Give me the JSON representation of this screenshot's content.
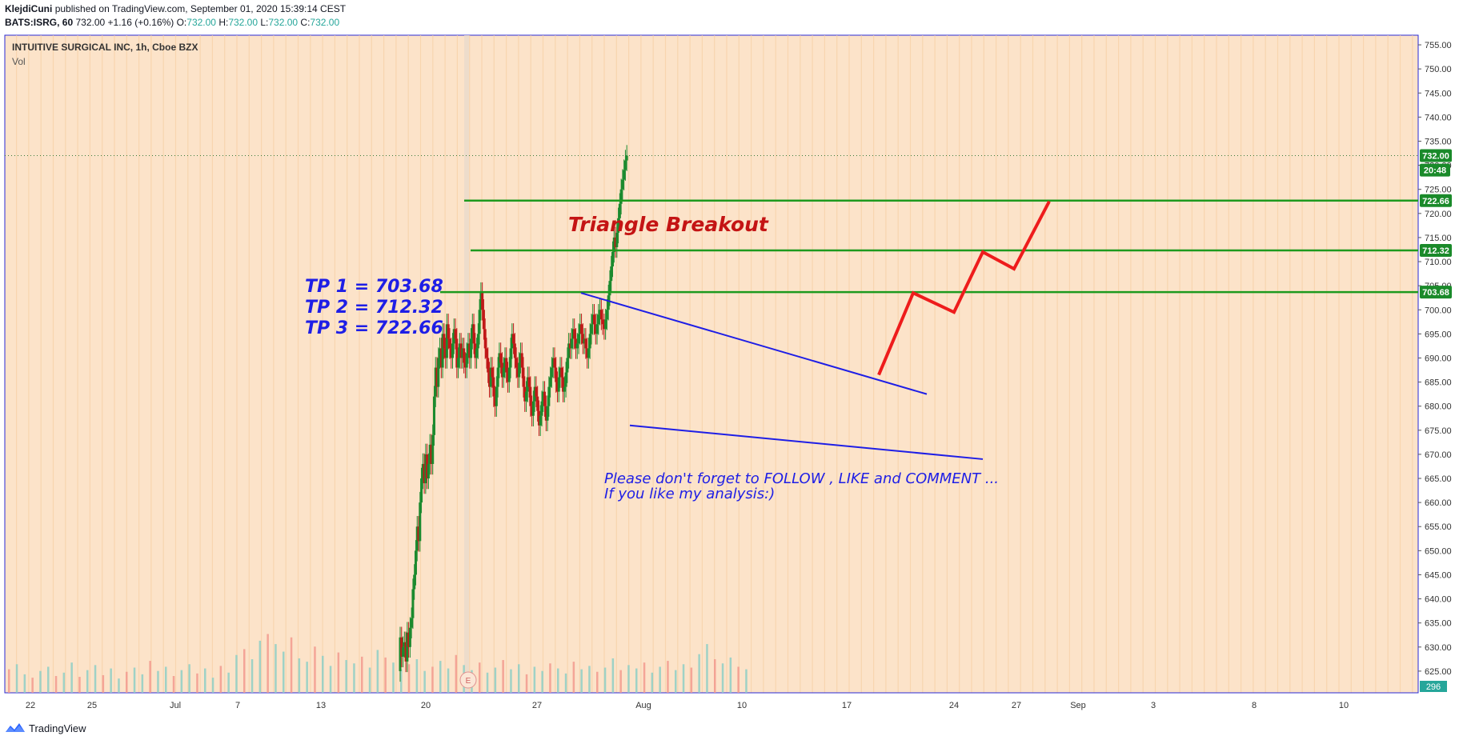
{
  "header": {
    "author": "KlejdiCuni",
    "published": "published on TradingView.com, September 01, 2020 15:39:14 CEST",
    "symbol": "BATS:ISRG, 60",
    "last": "732.00",
    "change": "+1.16 (+0.16%)",
    "o_label": "O:",
    "o": "732.00",
    "h_label": "H:",
    "h": "732.00",
    "l_label": "L:",
    "l": "732.00",
    "c_label": "C:",
    "c": "732.00"
  },
  "chart_title": "INTUITIVE SURGICAL INC, 1h, Cboe BZX",
  "volume_label": "Vol",
  "annotations": {
    "tp1": "TP 1 = 703.68",
    "tp2": "TP 2 = 712.32",
    "tp3": "TP 3 = 722.66",
    "title": "Triangle Breakout",
    "note1": "Please don't forget  to FOLLOW , LIKE and COMMENT ...",
    "note2": "If you like my analysis:)"
  },
  "footer": {
    "brand": "TradingView"
  },
  "colors": {
    "background": "#fce3c9",
    "up": "#1b8a2e",
    "down": "#c01818",
    "level": "#1e9a1e",
    "trend": "#1e1ee6",
    "path": "#ee1c1c",
    "axis_badge": "#1a8a2a",
    "vol_badge": "#26a69a"
  },
  "chart_data": {
    "type": "candlestick",
    "title": "INTUITIVE SURGICAL INC, 1h, Cboe BZX",
    "y_ticks": [
      625,
      630,
      635,
      640,
      645,
      650,
      655,
      660,
      665,
      670,
      675,
      680,
      685,
      690,
      695,
      700,
      705,
      710,
      715,
      720,
      725,
      730,
      735,
      740,
      745,
      750,
      755
    ],
    "ylim": [
      620.5,
      757
    ],
    "x_ticks": [
      "22",
      "25",
      "Jul",
      "7",
      "13",
      "20",
      "27",
      "Aug",
      "10",
      "17",
      "24",
      "27",
      "Sep",
      "3",
      "8",
      "10"
    ],
    "price_badges": [
      {
        "label": "732.00",
        "value": 732.0
      },
      {
        "label": "20:48",
        "value": 729.0
      },
      {
        "label": "722.66",
        "value": 722.66
      },
      {
        "label": "712.32",
        "value": 712.32
      },
      {
        "label": "703.68",
        "value": 703.68
      }
    ],
    "volume_badge": "296",
    "levels": [
      {
        "name": "TP 1",
        "value": 703.68
      },
      {
        "name": "TP 2",
        "value": 712.32
      },
      {
        "name": "TP 3",
        "value": 722.66
      }
    ],
    "trendlines": [
      {
        "from": {
          "x": "Jul 30",
          "y": 703.5
        },
        "to": {
          "x": "Aug 21",
          "y": 682.5
        }
      },
      {
        "from": {
          "x": "Aug 1",
          "y": 676
        },
        "to": {
          "x": "Aug 25",
          "y": 669
        }
      }
    ],
    "projection_path": [
      {
        "x": "Aug 18",
        "y": 686.5
      },
      {
        "x": "Aug 20",
        "y": 703.5
      },
      {
        "x": "Aug 24",
        "y": 699.5
      },
      {
        "x": "Aug 25",
        "y": 712
      },
      {
        "x": "Aug 27",
        "y": 708.5
      },
      {
        "x": "Aug 29",
        "y": 722.5
      }
    ],
    "candles": [
      [
        600,
        632
      ],
      [
        602,
        628
      ],
      [
        604,
        630
      ],
      [
        606,
        631
      ],
      [
        608,
        627
      ],
      [
        610,
        633
      ],
      [
        612,
        630
      ],
      [
        614,
        634
      ],
      [
        616,
        636
      ],
      [
        618,
        642
      ],
      [
        620,
        645
      ],
      [
        622,
        650
      ],
      [
        624,
        655
      ],
      [
        626,
        652
      ],
      [
        628,
        660
      ],
      [
        630,
        665
      ],
      [
        632,
        668
      ],
      [
        634,
        664
      ],
      [
        636,
        670
      ],
      [
        638,
        665
      ],
      [
        640,
        668
      ],
      [
        642,
        672
      ],
      [
        644,
        668
      ],
      [
        646,
        674
      ],
      [
        648,
        682
      ],
      [
        650,
        688
      ],
      [
        652,
        684
      ],
      [
        654,
        690
      ],
      [
        656,
        692
      ],
      [
        658,
        688
      ],
      [
        660,
        695
      ],
      [
        662,
        692
      ],
      [
        664,
        690
      ],
      [
        666,
        697
      ],
      [
        668,
        694
      ],
      [
        670,
        692
      ],
      [
        672,
        690
      ],
      [
        674,
        693
      ],
      [
        676,
        696
      ],
      [
        678,
        694
      ],
      [
        680,
        688
      ],
      [
        682,
        690
      ],
      [
        684,
        693
      ],
      [
        686,
        690
      ],
      [
        688,
        692
      ],
      [
        690,
        689
      ],
      [
        692,
        688
      ],
      [
        694,
        691
      ],
      [
        696,
        693
      ],
      [
        698,
        690
      ],
      [
        700,
        694
      ],
      [
        702,
        697
      ],
      [
        704,
        693
      ],
      [
        706,
        690
      ],
      [
        708,
        692
      ],
      [
        710,
        695
      ],
      [
        712,
        700
      ],
      [
        714,
        703.5
      ],
      [
        716,
        700
      ],
      [
        718,
        696
      ],
      [
        720,
        692
      ],
      [
        722,
        690
      ],
      [
        724,
        687
      ],
      [
        726,
        684
      ],
      [
        728,
        688
      ],
      [
        730,
        686
      ],
      [
        732,
        682
      ],
      [
        734,
        680
      ],
      [
        736,
        684
      ],
      [
        738,
        688
      ],
      [
        740,
        691
      ],
      [
        742,
        689
      ],
      [
        744,
        686
      ],
      [
        746,
        688
      ],
      [
        748,
        690
      ],
      [
        750,
        687
      ],
      [
        752,
        685
      ],
      [
        754,
        688
      ],
      [
        756,
        692
      ],
      [
        758,
        695
      ],
      [
        760,
        693
      ],
      [
        762,
        690
      ],
      [
        764,
        688
      ],
      [
        766,
        686
      ],
      [
        768,
        689
      ],
      [
        770,
        691
      ],
      [
        772,
        688
      ],
      [
        774,
        684
      ],
      [
        776,
        681
      ],
      [
        778,
        683
      ],
      [
        780,
        686
      ],
      [
        782,
        684
      ],
      [
        784,
        680
      ],
      [
        786,
        678
      ],
      [
        788,
        681
      ],
      [
        790,
        684
      ],
      [
        792,
        682
      ],
      [
        794,
        679
      ],
      [
        796,
        676
      ],
      [
        798,
        678
      ],
      [
        800,
        681
      ],
      [
        802,
        683
      ],
      [
        804,
        680
      ],
      [
        806,
        677
      ],
      [
        808,
        680
      ],
      [
        810,
        684
      ],
      [
        812,
        686
      ],
      [
        814,
        688
      ],
      [
        816,
        690
      ],
      [
        818,
        688
      ],
      [
        820,
        685
      ],
      [
        822,
        683
      ],
      [
        824,
        686
      ],
      [
        826,
        688
      ],
      [
        828,
        686
      ],
      [
        830,
        683
      ],
      [
        832,
        684
      ],
      [
        834,
        687
      ],
      [
        836,
        690
      ],
      [
        838,
        693
      ],
      [
        840,
        692
      ],
      [
        842,
        694
      ],
      [
        844,
        696
      ],
      [
        846,
        694
      ],
      [
        848,
        692
      ],
      [
        850,
        693
      ],
      [
        852,
        695
      ],
      [
        854,
        697
      ],
      [
        856,
        695
      ],
      [
        858,
        693
      ],
      [
        860,
        694
      ],
      [
        862,
        692
      ],
      [
        864,
        690
      ],
      [
        866,
        692
      ],
      [
        868,
        695
      ],
      [
        870,
        697
      ],
      [
        872,
        699
      ],
      [
        874,
        697
      ],
      [
        876,
        695
      ],
      [
        878,
        697
      ],
      [
        880,
        699
      ],
      [
        882,
        700
      ],
      [
        884,
        698
      ],
      [
        886,
        697
      ],
      [
        888,
        696
      ],
      [
        890,
        698
      ],
      [
        892,
        700
      ],
      [
        894,
        703
      ],
      [
        896,
        706
      ],
      [
        898,
        709
      ],
      [
        900,
        712
      ],
      [
        902,
        715
      ],
      [
        904,
        713
      ],
      [
        906,
        716
      ],
      [
        908,
        719
      ],
      [
        910,
        722
      ],
      [
        912,
        725
      ],
      [
        914,
        727
      ],
      [
        916,
        729
      ],
      [
        918,
        731
      ],
      [
        920,
        732
      ]
    ],
    "volume": [
      [
        0,
        28
      ],
      [
        1,
        34
      ],
      [
        2,
        22
      ],
      [
        3,
        18
      ],
      [
        4,
        26
      ],
      [
        5,
        31
      ],
      [
        6,
        20
      ],
      [
        7,
        24
      ],
      [
        8,
        36
      ],
      [
        9,
        19
      ],
      [
        10,
        27
      ],
      [
        11,
        33
      ],
      [
        12,
        21
      ],
      [
        13,
        29
      ],
      [
        14,
        17
      ],
      [
        15,
        25
      ],
      [
        16,
        30
      ],
      [
        17,
        22
      ],
      [
        18,
        38
      ],
      [
        19,
        26
      ],
      [
        20,
        31
      ],
      [
        21,
        20
      ],
      [
        22,
        27
      ],
      [
        23,
        34
      ],
      [
        24,
        23
      ],
      [
        25,
        29
      ],
      [
        26,
        18
      ],
      [
        27,
        32
      ],
      [
        28,
        24
      ],
      [
        29,
        45
      ],
      [
        30,
        52
      ],
      [
        31,
        40
      ],
      [
        32,
        62
      ],
      [
        33,
        70
      ],
      [
        34,
        58
      ],
      [
        35,
        49
      ],
      [
        36,
        66
      ],
      [
        37,
        41
      ],
      [
        38,
        37
      ],
      [
        39,
        55
      ],
      [
        40,
        44
      ],
      [
        41,
        32
      ],
      [
        42,
        48
      ],
      [
        43,
        39
      ],
      [
        44,
        35
      ],
      [
        45,
        43
      ],
      [
        46,
        30
      ],
      [
        47,
        51
      ],
      [
        48,
        42
      ],
      [
        49,
        36
      ],
      [
        50,
        28
      ],
      [
        51,
        34
      ],
      [
        52,
        40
      ],
      [
        53,
        26
      ],
      [
        54,
        31
      ],
      [
        55,
        38
      ],
      [
        56,
        29
      ],
      [
        57,
        45
      ],
      [
        58,
        33
      ],
      [
        59,
        27
      ],
      [
        60,
        36
      ],
      [
        61,
        24
      ],
      [
        62,
        30
      ],
      [
        63,
        39
      ],
      [
        64,
        28
      ],
      [
        65,
        34
      ],
      [
        66,
        22
      ],
      [
        67,
        31
      ],
      [
        68,
        26
      ],
      [
        69,
        35
      ],
      [
        70,
        29
      ],
      [
        71,
        23
      ],
      [
        72,
        37
      ],
      [
        73,
        28
      ],
      [
        74,
        32
      ],
      [
        75,
        25
      ],
      [
        76,
        30
      ],
      [
        77,
        41
      ],
      [
        78,
        27
      ],
      [
        79,
        33
      ],
      [
        80,
        29
      ],
      [
        81,
        36
      ],
      [
        82,
        24
      ],
      [
        83,
        31
      ],
      [
        84,
        38
      ],
      [
        85,
        27
      ],
      [
        86,
        34
      ],
      [
        87,
        30
      ],
      [
        88,
        46
      ],
      [
        89,
        58
      ],
      [
        90,
        40
      ],
      [
        91,
        35
      ],
      [
        92,
        42
      ],
      [
        93,
        31
      ],
      [
        94,
        28
      ]
    ]
  }
}
